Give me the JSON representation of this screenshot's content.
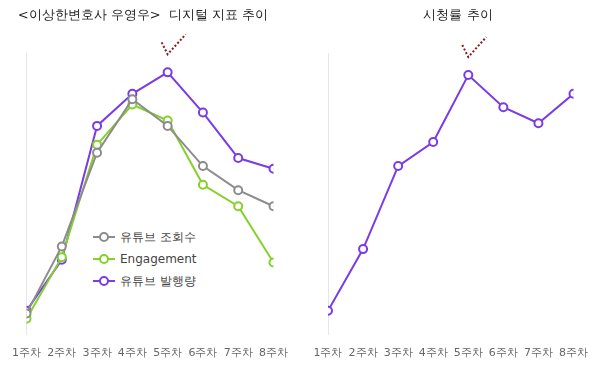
{
  "chart_data": [
    {
      "type": "line",
      "title": "<이상한변호사 우영우>  디지털 지표 추이",
      "categories": [
        "1주차",
        "2주차",
        "3주차",
        "4주차",
        "5주차",
        "6주차",
        "7주차",
        "8주차"
      ],
      "series": [
        {
          "name": "유튜브 조회수",
          "color": "#8c8c8c",
          "values": [
            8,
            33,
            68,
            88,
            78,
            63,
            54,
            48
          ]
        },
        {
          "name": "Engagement",
          "color": "#84d12a",
          "values": [
            6,
            29,
            71,
            86,
            80,
            56,
            48,
            27
          ]
        },
        {
          "name": "유튜브 발행량",
          "color": "#7a3ce6",
          "values": [
            9,
            28,
            78,
            90,
            98,
            83,
            66,
            62
          ]
        }
      ],
      "ylim": [
        0,
        105
      ],
      "grid": false,
      "legend": "center",
      "marker": "circle",
      "tick_labels": "x"
    },
    {
      "type": "line",
      "title": "시청률 추이",
      "categories": [
        "1주차",
        "2주차",
        "3주차",
        "4주차",
        "5주차",
        "6주차",
        "7주차",
        "8주차"
      ],
      "series": [
        {
          "color": "#7a3ce6",
          "values": [
            9,
            32,
            63,
            72,
            97,
            85,
            79,
            90
          ]
        }
      ],
      "ylim": [
        0,
        105
      ],
      "grid": false,
      "marker": "circle",
      "tick_labels": "x"
    }
  ]
}
